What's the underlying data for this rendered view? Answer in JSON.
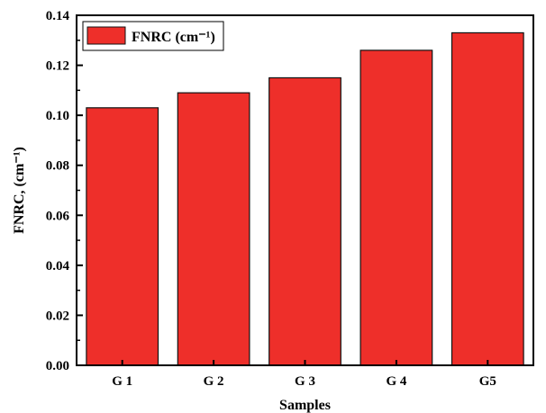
{
  "chart_data": {
    "type": "bar",
    "categories": [
      "G 1",
      "G 2",
      "G 3",
      "G 4",
      "G5"
    ],
    "series": [
      {
        "name": "FNRC (cm⁻¹)",
        "values": [
          0.103,
          0.109,
          0.115,
          0.126,
          0.133
        ]
      }
    ],
    "xlabel": "Samples",
    "ylabel": "FNRC, (cm⁻¹)",
    "ylim": [
      0,
      0.14
    ],
    "yticks": [
      0.0,
      0.02,
      0.04,
      0.06,
      0.08,
      0.1,
      0.12,
      0.14
    ],
    "ytick_labels": [
      "0.00",
      "0.02",
      "0.04",
      "0.06",
      "0.08",
      "0.10",
      "0.12",
      "0.14"
    ],
    "grid": false,
    "legend_position": "top-left",
    "bar_color": "#ee2f2a",
    "bar_edge_color": "#111111"
  }
}
